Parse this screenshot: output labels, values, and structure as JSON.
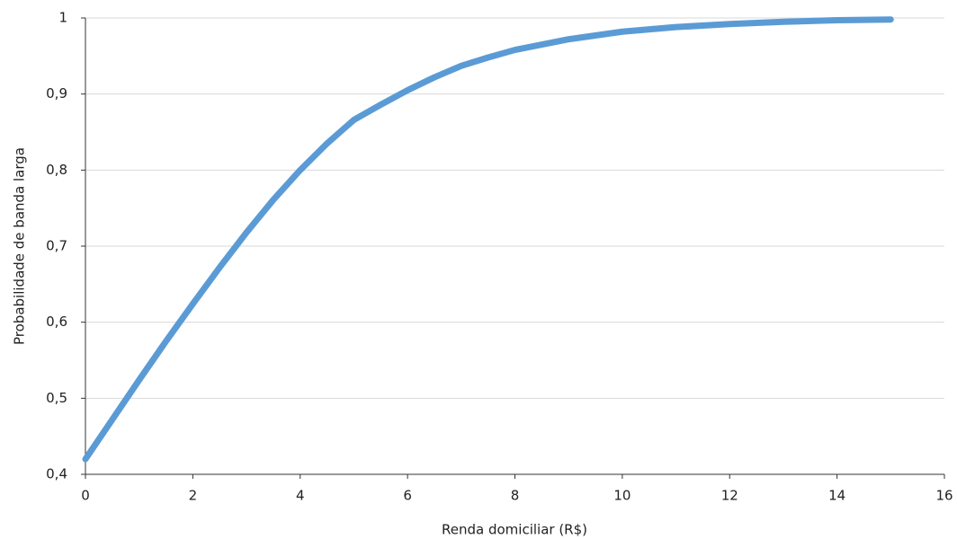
{
  "chart_data": {
    "type": "line",
    "x_label": "Renda domiciliar (R$)",
    "y_label": "Probabilidade de banda larga",
    "x": [
      0,
      0.5,
      1,
      1.5,
      2,
      2.5,
      3,
      3.5,
      4,
      4.5,
      5,
      5.5,
      6,
      6.5,
      7,
      7.5,
      8,
      9,
      10,
      11,
      12,
      13,
      14,
      15
    ],
    "series": [
      {
        "color": "#5b9bd5",
        "values": [
          0.42,
          0.472,
          0.524,
          0.575,
          0.624,
          0.672,
          0.718,
          0.761,
          0.8,
          0.835,
          0.866,
          0.886,
          0.905,
          0.922,
          0.937,
          0.948,
          0.958,
          0.972,
          0.982,
          0.988,
          0.992,
          0.995,
          0.997,
          0.998
        ]
      }
    ],
    "xlim": [
      0,
      16
    ],
    "xticks": [
      0,
      2,
      4,
      6,
      8,
      10,
      12,
      14,
      16
    ],
    "ylim": [
      0.4,
      1
    ],
    "yticks": [
      {
        "value": 0.4,
        "label": "0,4"
      },
      {
        "value": 0.5,
        "label": "0,5"
      },
      {
        "value": 0.6,
        "label": "0,6"
      },
      {
        "value": 0.7,
        "label": "0,7"
      },
      {
        "value": 0.8,
        "label": "0,8"
      },
      {
        "value": 0.9,
        "label": "0,9"
      },
      1
    ],
    "grid": true
  }
}
